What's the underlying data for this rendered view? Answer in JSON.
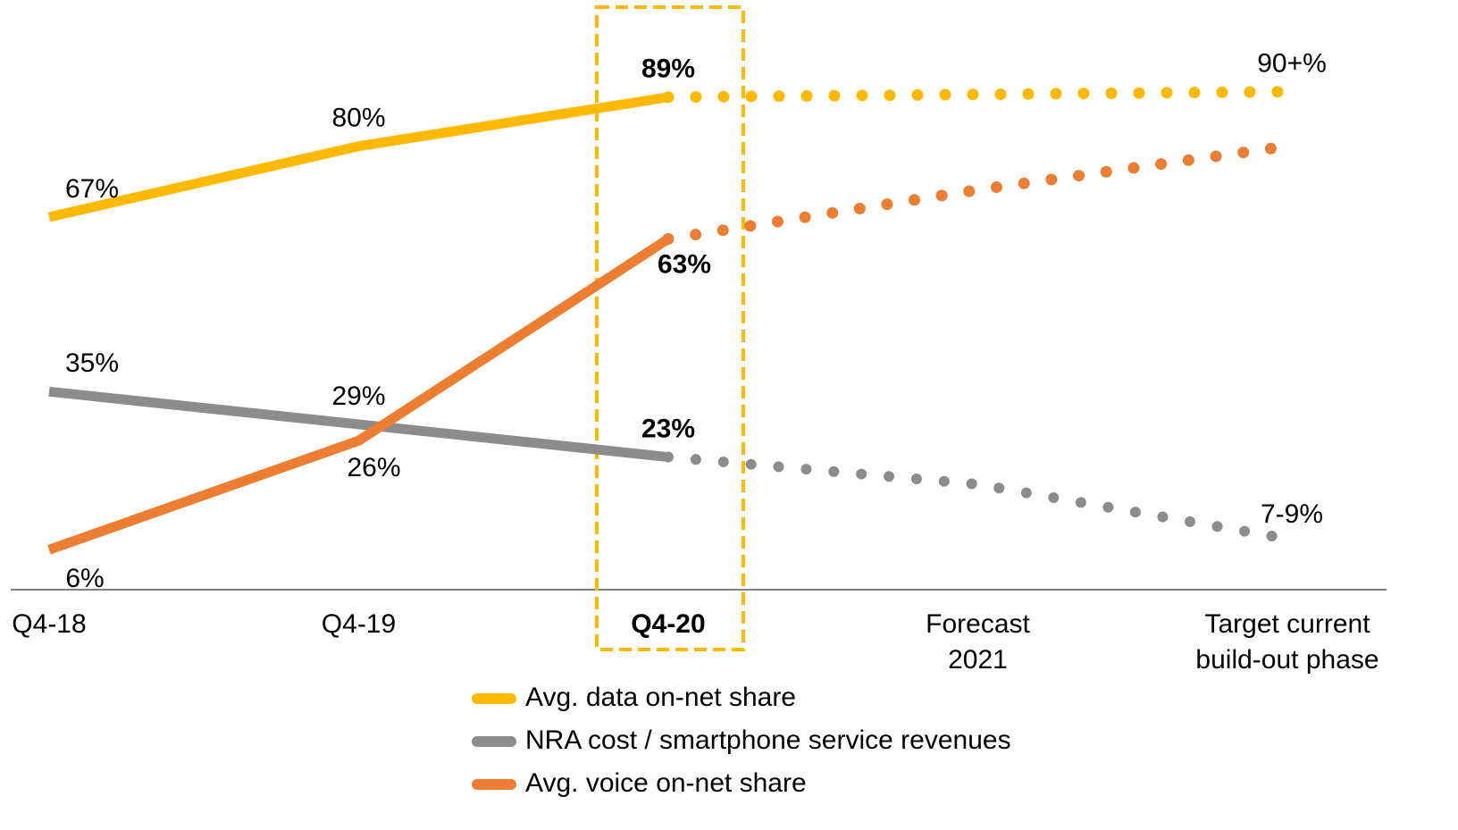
{
  "chart_data": {
    "type": "line",
    "categories": [
      "Q4-18",
      "Q4-19",
      "Q4-20",
      "Forecast\n2021",
      "Target current\nbuild-out phase"
    ],
    "highlight_index": 2,
    "ylim": [
      -1,
      106
    ],
    "series": [
      {
        "name": "Avg. data on-net share",
        "color": "#FFB900",
        "values": [
          67,
          80,
          89,
          null,
          null
        ],
        "value_labels": [
          "67%",
          "80%",
          "89%",
          null,
          null
        ],
        "forecast": [
          null,
          null,
          89,
          89.5,
          90
        ],
        "forecast_labels": [
          null,
          null,
          null,
          null,
          "90+%"
        ]
      },
      {
        "name": "NRA cost / smartphone service revenues",
        "color": "#8C8C8C",
        "values": [
          35,
          29,
          23,
          null,
          null
        ],
        "value_labels": [
          "35%",
          "29%",
          "23%",
          null,
          null
        ],
        "forecast": [
          null,
          null,
          23,
          18,
          8
        ],
        "forecast_labels": [
          null,
          null,
          null,
          null,
          "7-9%"
        ]
      },
      {
        "name": "Avg. voice on-net share",
        "color": "#ED7D31",
        "values": [
          6,
          26,
          63,
          null,
          null
        ],
        "value_labels": [
          "6%",
          "26%",
          "63%",
          null,
          null
        ],
        "forecast": [
          null,
          null,
          63,
          72,
          80
        ],
        "forecast_labels": [
          null,
          null,
          null,
          null,
          null
        ]
      }
    ]
  }
}
